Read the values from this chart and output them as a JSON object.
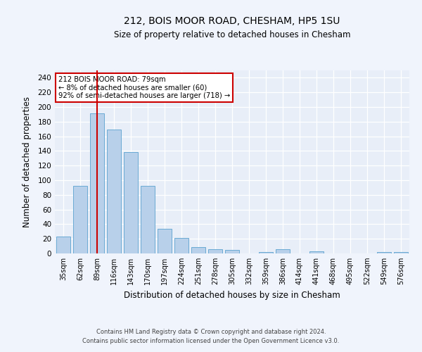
{
  "title1": "212, BOIS MOOR ROAD, CHESHAM, HP5 1SU",
  "title2": "Size of property relative to detached houses in Chesham",
  "xlabel": "Distribution of detached houses by size in Chesham",
  "ylabel": "Number of detached properties",
  "categories": [
    "35sqm",
    "62sqm",
    "89sqm",
    "116sqm",
    "143sqm",
    "170sqm",
    "197sqm",
    "224sqm",
    "251sqm",
    "278sqm",
    "305sqm",
    "332sqm",
    "359sqm",
    "386sqm",
    "414sqm",
    "441sqm",
    "468sqm",
    "495sqm",
    "522sqm",
    "549sqm",
    "576sqm"
  ],
  "values": [
    23,
    92,
    191,
    169,
    138,
    92,
    34,
    21,
    9,
    6,
    5,
    0,
    2,
    6,
    0,
    3,
    0,
    0,
    0,
    2,
    2
  ],
  "bar_color": "#b8d0ea",
  "bar_edge_color": "#6aaad4",
  "vline_x": 2,
  "vline_color": "#cc0000",
  "annotation_text": "212 BOIS MOOR ROAD: 79sqm\n← 8% of detached houses are smaller (60)\n92% of semi-detached houses are larger (718) →",
  "annotation_box_color": "#ffffff",
  "annotation_box_edge_color": "#cc0000",
  "ylim": [
    0,
    250
  ],
  "yticks": [
    0,
    20,
    40,
    60,
    80,
    100,
    120,
    140,
    160,
    180,
    200,
    220,
    240
  ],
  "footer1": "Contains HM Land Registry data © Crown copyright and database right 2024.",
  "footer2": "Contains public sector information licensed under the Open Government Licence v3.0.",
  "fig_bg_color": "#f0f4fc",
  "plot_bg_color": "#e8eef8"
}
